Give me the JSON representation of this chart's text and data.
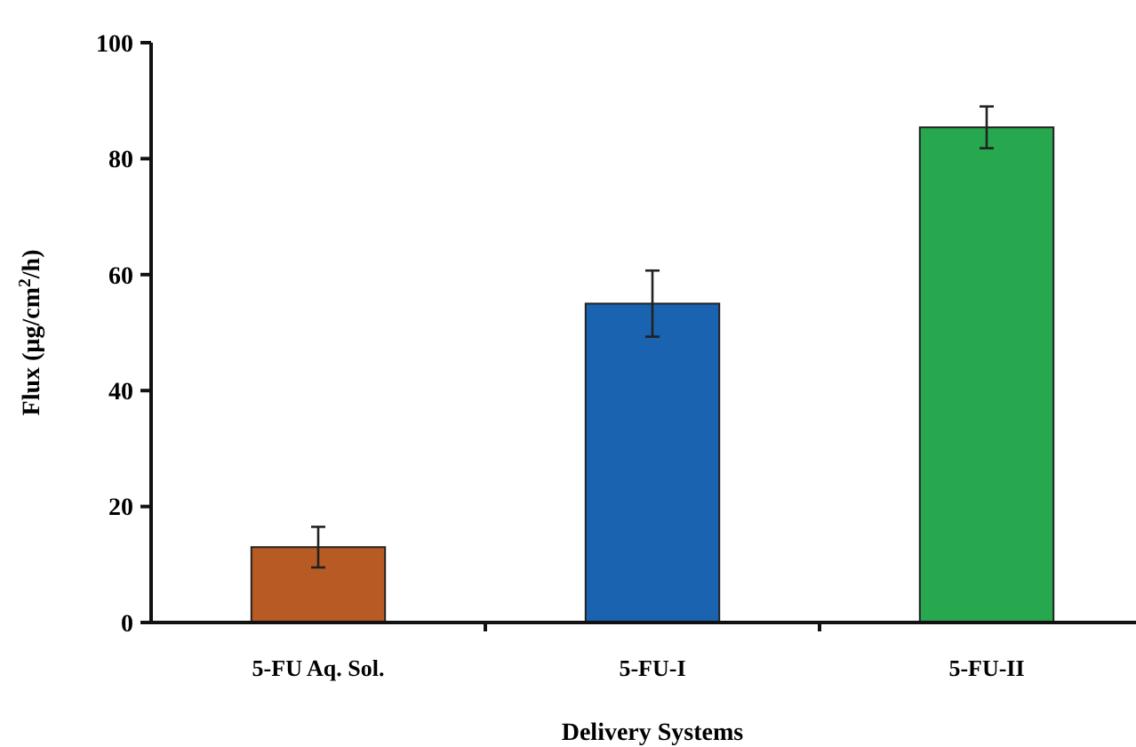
{
  "chart_data": {
    "type": "bar",
    "xlabel": "Delivery Systems",
    "ylabel": "Flux (µg/cm$^{2}$/h)",
    "categories": [
      "5-FU Aq. Sol.",
      "5-FU-I",
      "5-FU-II"
    ],
    "values": [
      13,
      55,
      85.4
    ],
    "colors": [
      "#b85a24",
      "#1a63b0",
      "#27a84f"
    ],
    "errors": [
      3.5,
      5.7,
      3.6
    ],
    "ylim": [
      0,
      100
    ],
    "yticks": [
      0,
      20,
      40,
      60,
      80,
      100
    ],
    "grid": false
  }
}
